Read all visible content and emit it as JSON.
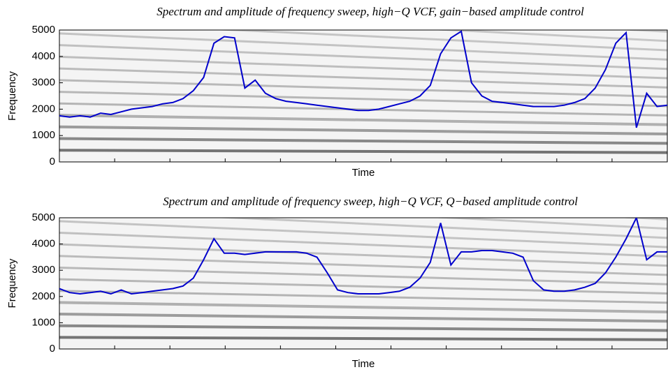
{
  "chart_data": [
    {
      "type": "line",
      "title": "Spectrum and amplitude of frequency sweep, high−Q VCF, gain−based amplitude control",
      "xlabel": "Time",
      "ylabel": "Frequency",
      "ylim": [
        0,
        5000
      ],
      "yticks": [
        0,
        1000,
        2000,
        3000,
        4000,
        5000
      ],
      "color": "#0000cc",
      "values": [
        1750,
        1700,
        1750,
        1700,
        1850,
        1800,
        1900,
        2000,
        2050,
        2100,
        2200,
        2250,
        2400,
        2700,
        3200,
        4500,
        4750,
        4700,
        2800,
        3100,
        2600,
        2400,
        2300,
        2250,
        2200,
        2150,
        2100,
        2050,
        2000,
        1950,
        1950,
        2000,
        2100,
        2200,
        2300,
        2500,
        2900,
        4100,
        4700,
        4950,
        3000,
        2500,
        2300,
        2250,
        2200,
        2150,
        2100,
        2100,
        2100,
        2150,
        2250,
        2400,
        2800,
        3500,
        4500,
        4900,
        1300,
        2600,
        2100,
        2150
      ]
    },
    {
      "type": "line",
      "title": "Spectrum and amplitude of frequency sweep, high−Q VCF, Q−based amplitude control",
      "xlabel": "Time",
      "ylabel": "Frequency",
      "ylim": [
        0,
        5000
      ],
      "yticks": [
        0,
        1000,
        2000,
        3000,
        4000,
        5000
      ],
      "color": "#0000cc",
      "values": [
        2300,
        2150,
        2100,
        2150,
        2200,
        2100,
        2250,
        2100,
        2150,
        2200,
        2250,
        2300,
        2400,
        2700,
        3400,
        4200,
        3650,
        3650,
        3600,
        3650,
        3700,
        3700,
        3700,
        3700,
        3650,
        3500,
        2900,
        2250,
        2150,
        2100,
        2100,
        2100,
        2150,
        2200,
        2350,
        2700,
        3300,
        4800,
        3200,
        3700,
        3700,
        3750,
        3750,
        3700,
        3650,
        3500,
        2600,
        2250,
        2200,
        2200,
        2250,
        2350,
        2500,
        2900,
        3500,
        4200,
        5000,
        3400,
        3700,
        3700
      ]
    }
  ]
}
